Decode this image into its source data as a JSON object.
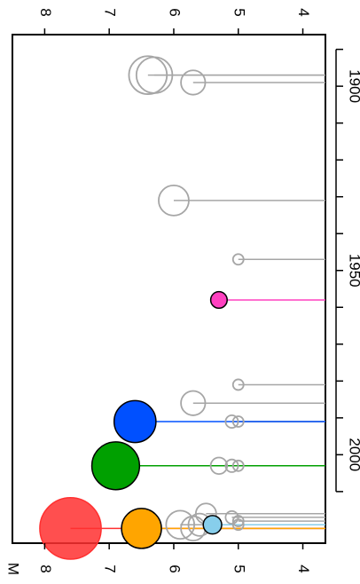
{
  "chart_data": {
    "type": "scatter",
    "orientation": "rotated-90-clockwise",
    "axis_top": {
      "label": "",
      "ticks": [
        "8",
        "7",
        "6",
        "5",
        "4"
      ],
      "values": [
        8,
        7,
        6,
        5,
        4
      ]
    },
    "axis_bottom": {
      "label": "M",
      "ticks": [
        "8",
        "7",
        "6",
        "5",
        "4"
      ],
      "values": [
        8,
        7,
        6,
        5,
        4
      ]
    },
    "axis_right": {
      "label": "",
      "ticks": [
        "1900",
        "1950",
        "2000"
      ],
      "values": [
        1900,
        1950,
        2000
      ]
    },
    "xlim": [
      1886,
      2024
    ],
    "ylim": [
      3.65,
      8.5
    ],
    "grid": false,
    "colors": {
      "gray": "#a6a6a6",
      "red": "#ff3030",
      "orange": "#ffa500",
      "green": "#00a000",
      "blue": "#0050ff",
      "pink": "#ff40c0",
      "lightblue": "#87ceeb"
    },
    "series": [
      {
        "style": "gray-open-circles",
        "points": [
          {
            "year": 1897,
            "magnitude": 6.3
          },
          {
            "year": 1897,
            "magnitude": 6.4
          },
          {
            "year": 1899,
            "magnitude": 5.7
          },
          {
            "year": 1931,
            "magnitude": 6.0
          },
          {
            "year": 1947,
            "magnitude": 5.0
          },
          {
            "year": 1981,
            "magnitude": 5.0
          },
          {
            "year": 1986,
            "magnitude": 5.7
          },
          {
            "year": 1991,
            "magnitude": 5.1
          },
          {
            "year": 1991,
            "magnitude": 5.0
          },
          {
            "year": 2003,
            "magnitude": 5.3
          },
          {
            "year": 2003,
            "magnitude": 5.1
          },
          {
            "year": 2003,
            "magnitude": 5.0
          },
          {
            "year": 2016,
            "magnitude": 5.5
          },
          {
            "year": 2017,
            "magnitude": 5.1
          },
          {
            "year": 2018,
            "magnitude": 5.0
          },
          {
            "year": 2019,
            "magnitude": 5.9
          },
          {
            "year": 2019,
            "magnitude": 5.6
          },
          {
            "year": 2019,
            "magnitude": 5.0
          },
          {
            "year": 2020,
            "magnitude": 5.7
          }
        ]
      },
      {
        "style": "red-filled",
        "points": [
          {
            "year": 2020,
            "magnitude": 7.6
          }
        ]
      },
      {
        "style": "orange-filled",
        "points": [
          {
            "year": 2020,
            "magnitude": 6.5
          }
        ]
      },
      {
        "style": "lightblue-filled",
        "points": [
          {
            "year": 2019,
            "magnitude": 5.4
          }
        ]
      },
      {
        "style": "green-filled",
        "points": [
          {
            "year": 2003,
            "magnitude": 6.9
          }
        ]
      },
      {
        "style": "blue-filled",
        "points": [
          {
            "year": 1991,
            "magnitude": 6.6
          }
        ]
      },
      {
        "style": "pink-filled",
        "points": [
          {
            "year": 1958,
            "magnitude": 5.3
          }
        ]
      }
    ]
  }
}
